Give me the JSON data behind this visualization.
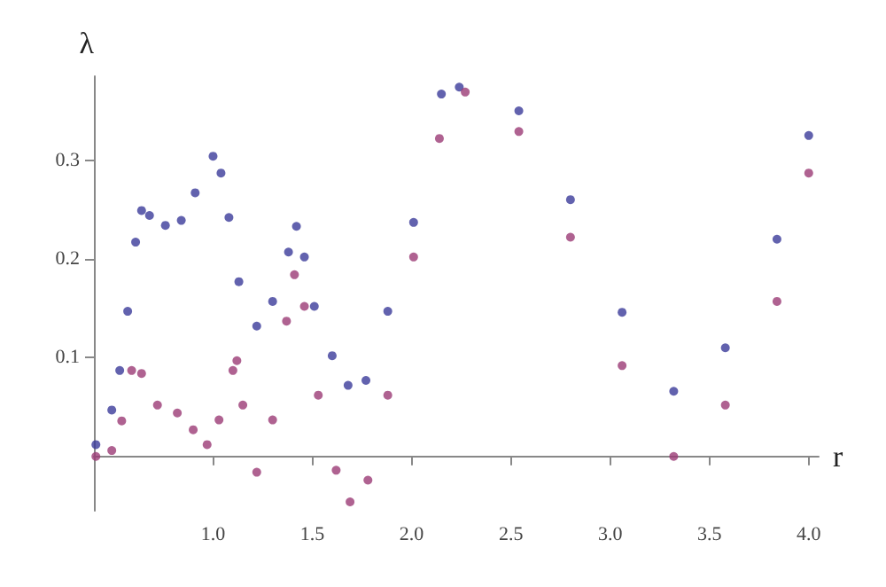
{
  "chart_data": {
    "type": "scatter",
    "xlabel": "r",
    "ylabel": "λ",
    "xlim": [
      0.4,
      4.05
    ],
    "ylim": [
      -0.055,
      0.385
    ],
    "xticks": [
      {
        "value": 1,
        "label": "1.0"
      },
      1.5,
      {
        "value": 2,
        "label": "2.0"
      },
      2.5,
      {
        "value": 3,
        "label": "3.0"
      },
      3.5,
      {
        "value": 4,
        "label": "4.0"
      }
    ],
    "yticks": [
      0.1,
      0.2,
      0.3
    ],
    "grid": false,
    "marker": "circle",
    "series": [
      {
        "color": "#3b3b9a",
        "x": [
          0.41,
          0.49,
          0.53,
          0.57,
          0.61,
          0.64,
          0.68,
          0.76,
          0.84,
          0.91,
          1.0,
          1.04,
          1.08,
          1.13,
          1.22,
          1.3,
          1.38,
          1.42,
          1.46,
          1.51,
          1.6,
          1.68,
          1.77,
          1.88,
          2.01,
          2.15,
          2.24,
          2.54,
          2.8,
          3.06,
          3.32,
          3.58,
          3.84,
          4.0
        ],
        "values": [
          0.012,
          0.047,
          0.087,
          0.147,
          0.217,
          0.249,
          0.244,
          0.234,
          0.239,
          0.267,
          0.304,
          0.287,
          0.242,
          0.177,
          0.132,
          0.157,
          0.207,
          0.233,
          0.202,
          0.152,
          0.102,
          0.072,
          0.077,
          0.147,
          0.237,
          0.367,
          0.374,
          0.35,
          0.26,
          0.146,
          0.066,
          0.11,
          0.22,
          0.325
        ]
      },
      {
        "color": "#9b3b75",
        "x": [
          0.41,
          0.49,
          0.54,
          0.59,
          0.64,
          0.72,
          0.82,
          0.9,
          0.97,
          1.03,
          1.1,
          1.12,
          1.15,
          1.22,
          1.3,
          1.37,
          1.41,
          1.46,
          1.53,
          1.62,
          1.69,
          1.78,
          1.88,
          2.01,
          2.14,
          2.27,
          2.54,
          2.8,
          3.06,
          3.32,
          3.58,
          3.84,
          4.0
        ],
        "values": [
          0.0,
          0.006,
          0.036,
          0.087,
          0.084,
          0.052,
          0.044,
          0.027,
          0.012,
          0.037,
          0.087,
          0.097,
          0.052,
          -0.016,
          0.037,
          0.137,
          0.184,
          0.152,
          0.062,
          -0.014,
          -0.046,
          -0.024,
          0.062,
          0.202,
          0.322,
          0.369,
          0.329,
          0.222,
          0.092,
          0.0,
          0.052,
          0.157,
          0.287
        ]
      }
    ]
  }
}
